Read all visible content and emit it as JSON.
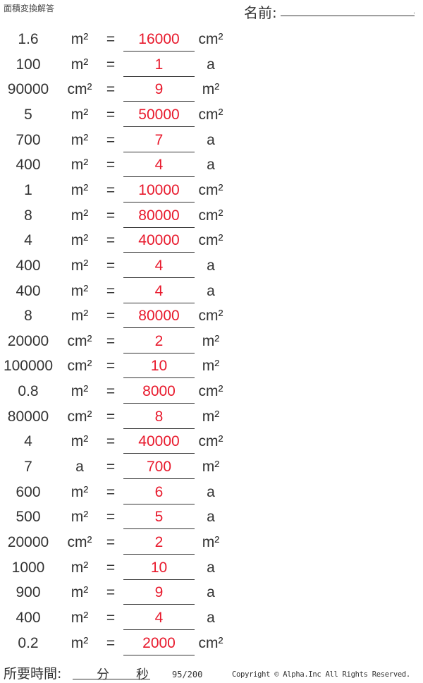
{
  "header": {
    "title": "面積変換解答",
    "name_label": "名前:",
    "name_dot": "."
  },
  "rows": [
    {
      "value": "1.6",
      "from": "m²",
      "eq": "=",
      "answer": "16000",
      "to": "cm²"
    },
    {
      "value": "100",
      "from": "m²",
      "eq": "=",
      "answer": "1",
      "to": "a"
    },
    {
      "value": "90000",
      "from": "cm²",
      "eq": "=",
      "answer": "9",
      "to": "m²"
    },
    {
      "value": "5",
      "from": "m²",
      "eq": "=",
      "answer": "50000",
      "to": "cm²"
    },
    {
      "value": "700",
      "from": "m²",
      "eq": "=",
      "answer": "7",
      "to": "a"
    },
    {
      "value": "400",
      "from": "m²",
      "eq": "=",
      "answer": "4",
      "to": "a"
    },
    {
      "value": "1",
      "from": "m²",
      "eq": "=",
      "answer": "10000",
      "to": "cm²"
    },
    {
      "value": "8",
      "from": "m²",
      "eq": "=",
      "answer": "80000",
      "to": "cm²"
    },
    {
      "value": "4",
      "from": "m²",
      "eq": "=",
      "answer": "40000",
      "to": "cm²"
    },
    {
      "value": "400",
      "from": "m²",
      "eq": "=",
      "answer": "4",
      "to": "a"
    },
    {
      "value": "400",
      "from": "m²",
      "eq": "=",
      "answer": "4",
      "to": "a"
    },
    {
      "value": "8",
      "from": "m²",
      "eq": "=",
      "answer": "80000",
      "to": "cm²"
    },
    {
      "value": "20000",
      "from": "cm²",
      "eq": "=",
      "answer": "2",
      "to": "m²"
    },
    {
      "value": "100000",
      "from": "cm²",
      "eq": "=",
      "answer": "10",
      "to": "m²"
    },
    {
      "value": "0.8",
      "from": "m²",
      "eq": "=",
      "answer": "8000",
      "to": "cm²"
    },
    {
      "value": "80000",
      "from": "cm²",
      "eq": "=",
      "answer": "8",
      "to": "m²"
    },
    {
      "value": "4",
      "from": "m²",
      "eq": "=",
      "answer": "40000",
      "to": "cm²"
    },
    {
      "value": "7",
      "from": "a",
      "eq": "=",
      "answer": "700",
      "to": "m²"
    },
    {
      "value": "600",
      "from": "m²",
      "eq": "=",
      "answer": "6",
      "to": "a"
    },
    {
      "value": "500",
      "from": "m²",
      "eq": "=",
      "answer": "5",
      "to": "a"
    },
    {
      "value": "20000",
      "from": "cm²",
      "eq": "=",
      "answer": "2",
      "to": "m²"
    },
    {
      "value": "1000",
      "from": "m²",
      "eq": "=",
      "answer": "10",
      "to": "a"
    },
    {
      "value": "900",
      "from": "m²",
      "eq": "=",
      "answer": "9",
      "to": "a"
    },
    {
      "value": "400",
      "from": "m²",
      "eq": "=",
      "answer": "4",
      "to": "a"
    },
    {
      "value": "0.2",
      "from": "m²",
      "eq": "=",
      "answer": "2000",
      "to": "cm²"
    }
  ],
  "footer": {
    "time_label": "所要時間:",
    "minutes": "分",
    "seconds": "秒",
    "page": "95/200",
    "copyright": "Copyright © Alpha.Inc All Rights Reserved."
  },
  "colors": {
    "answer": "#e8192c",
    "text": "#333333"
  }
}
